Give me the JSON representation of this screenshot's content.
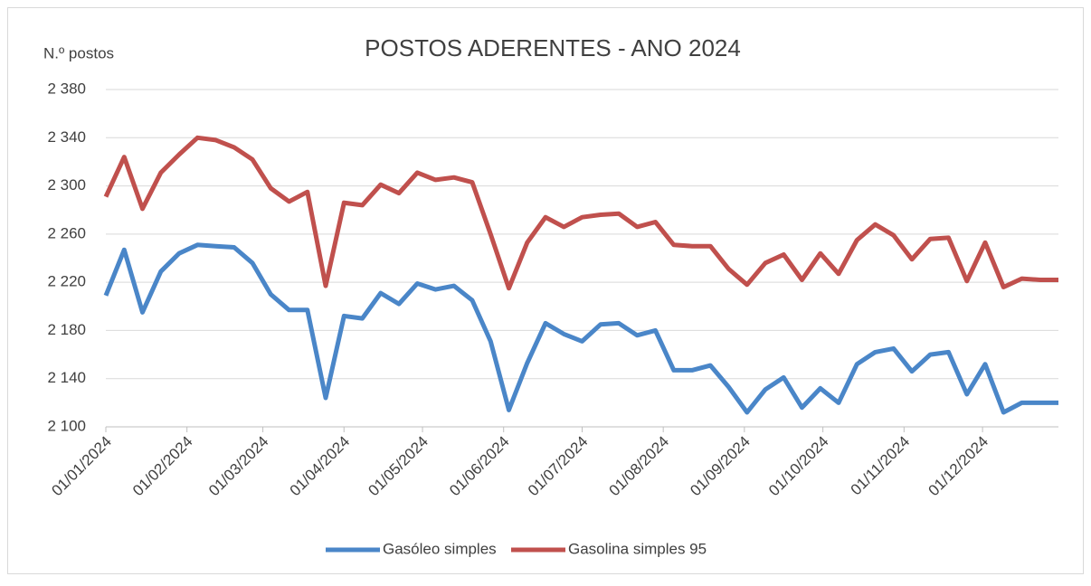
{
  "chart_data": {
    "type": "line",
    "title": "POSTOS ADERENTES - ANO 2024",
    "y_label": "N.º postos",
    "x": [
      "01/01/2024",
      "08/01/2024",
      "15/01/2024",
      "22/01/2024",
      "29/01/2024",
      "05/02/2024",
      "12/02/2024",
      "19/02/2024",
      "26/02/2024",
      "04/03/2024",
      "11/03/2024",
      "18/03/2024",
      "25/03/2024",
      "01/04/2024",
      "08/04/2024",
      "15/04/2024",
      "22/04/2024",
      "29/04/2024",
      "06/05/2024",
      "13/05/2024",
      "20/05/2024",
      "27/05/2024",
      "03/06/2024",
      "10/06/2024",
      "17/06/2024",
      "24/06/2024",
      "01/07/2024",
      "08/07/2024",
      "15/07/2024",
      "22/07/2024",
      "29/07/2024",
      "05/08/2024",
      "12/08/2024",
      "19/08/2024",
      "26/08/2024",
      "02/09/2024",
      "09/09/2024",
      "16/09/2024",
      "23/09/2024",
      "30/09/2024",
      "07/10/2024",
      "14/10/2024",
      "21/10/2024",
      "28/10/2024",
      "04/11/2024",
      "11/11/2024",
      "18/11/2024",
      "25/11/2024",
      "02/12/2024",
      "09/12/2024",
      "16/12/2024",
      "23/12/2024",
      "30/12/2024"
    ],
    "series": [
      {
        "name": "Gasóleo simples",
        "color": "#4a86c8",
        "values": [
          2209,
          2247,
          2195,
          2229,
          2244,
          2251,
          2250,
          2249,
          2236,
          2210,
          2197,
          2197,
          2124,
          2192,
          2190,
          2211,
          2202,
          2219,
          2214,
          2217,
          2205,
          2171,
          2114,
          2153,
          2186,
          2177,
          2171,
          2185,
          2186,
          2176,
          2180,
          2147,
          2147,
          2151,
          2133,
          2112,
          2131,
          2141,
          2116,
          2132,
          2120,
          2152,
          2162,
          2165,
          2146,
          2160,
          2162,
          2127,
          2152,
          2112,
          2120,
          2120,
          2120
        ]
      },
      {
        "name": "Gasolina simples 95",
        "color": "#c0504d",
        "values": [
          2291,
          2324,
          2281,
          2311,
          2326,
          2340,
          2338,
          2332,
          2322,
          2298,
          2287,
          2295,
          2217,
          2286,
          2284,
          2301,
          2294,
          2311,
          2305,
          2307,
          2303,
          2260,
          2215,
          2253,
          2274,
          2266,
          2274,
          2276,
          2277,
          2266,
          2270,
          2251,
          2250,
          2250,
          2231,
          2218,
          2236,
          2243,
          2222,
          2244,
          2227,
          2255,
          2268,
          2259,
          2239,
          2256,
          2257,
          2221,
          2253,
          2216,
          2223,
          2222,
          2222
        ]
      }
    ],
    "xlim": [
      "01/01/2024",
      "30/12/2024"
    ],
    "xticks": [
      "01/01/2024",
      "01/02/2024",
      "01/03/2024",
      "01/04/2024",
      "01/05/2024",
      "01/06/2024",
      "01/07/2024",
      "01/08/2024",
      "01/09/2024",
      "01/10/2024",
      "01/11/2024",
      "01/12/2024"
    ],
    "ylim": [
      2100,
      2380
    ],
    "yticks": [
      {
        "value": 2100,
        "label": "2 100"
      },
      {
        "value": 2140,
        "label": "2 140"
      },
      {
        "value": 2180,
        "label": "2 180"
      },
      {
        "value": 2220,
        "label": "2 220"
      },
      {
        "value": 2260,
        "label": "2 260"
      },
      {
        "value": 2300,
        "label": "2 300"
      },
      {
        "value": 2340,
        "label": "2 340"
      },
      {
        "value": 2380,
        "label": "2 380"
      }
    ],
    "grid": true,
    "legend": "bottom"
  }
}
